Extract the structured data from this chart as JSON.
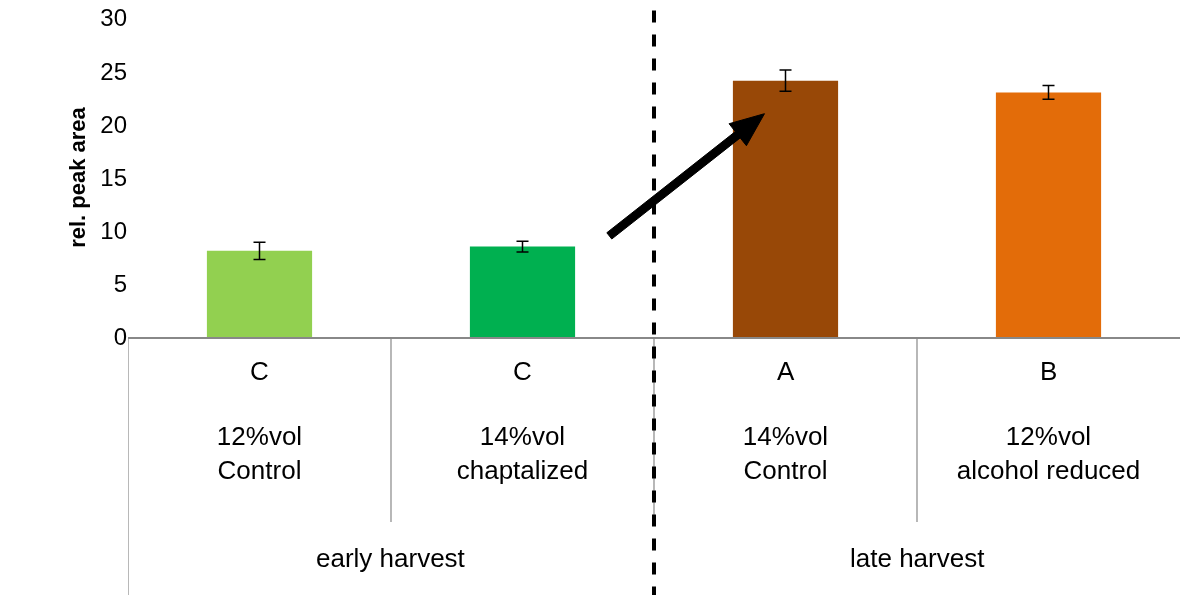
{
  "chart_data": {
    "type": "bar",
    "ylabel": "rel. peak area",
    "categories": [
      "12%vol\nControl",
      "14%vol\nchaptalized",
      "14%vol\nControl",
      "12%vol\nalcohol reduced"
    ],
    "values": [
      8.1,
      8.5,
      24.1,
      23.0
    ],
    "errors": [
      0.8,
      0.5,
      1.0,
      0.65
    ],
    "colors": [
      "#92d050",
      "#00b050",
      "#984807",
      "#e36c09"
    ],
    "ylim": [
      0,
      30
    ],
    "yticks": [
      0,
      5,
      10,
      15,
      20,
      25,
      30
    ],
    "annotations": [
      "C",
      "C",
      "A",
      "B",
      "early harvest",
      "late harvest"
    ]
  }
}
